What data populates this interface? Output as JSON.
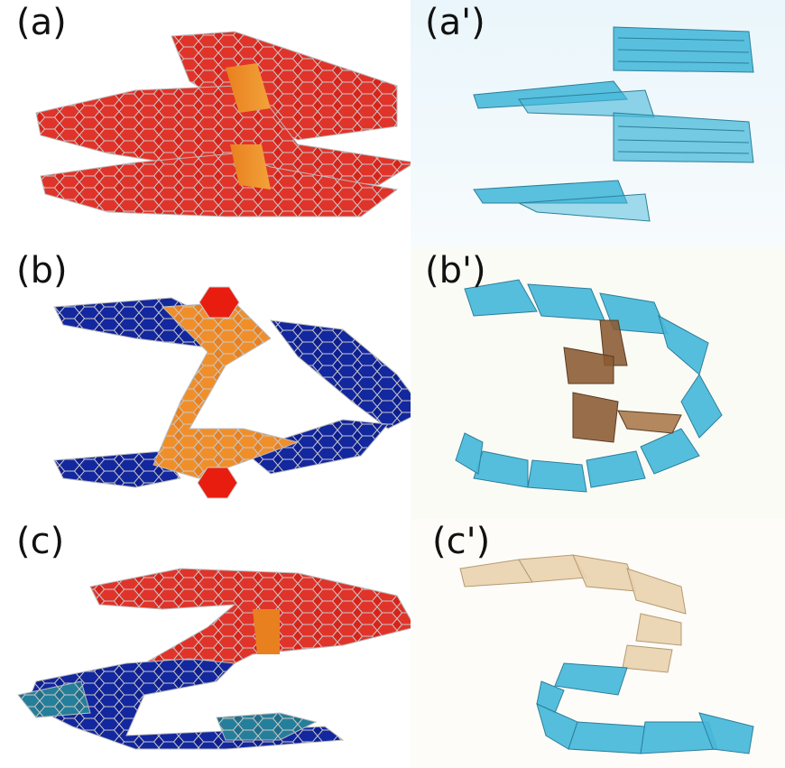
{
  "panels": {
    "a": {
      "label": "(a)",
      "kind": "molecular-helix",
      "colors": [
        "#d8231a",
        "#e8801f"
      ]
    },
    "a2": {
      "label": "(a')",
      "kind": "block-helix",
      "colors": [
        "#3fb4d6",
        "#8fd3e8"
      ]
    },
    "b": {
      "label": "(b)",
      "kind": "molecular-helix",
      "colors": [
        "#0e1f8f",
        "#e8801f",
        "#e81d10"
      ]
    },
    "b2": {
      "label": "(b')",
      "kind": "block-helix",
      "colors": [
        "#3fb4d6",
        "#8a5a32"
      ]
    },
    "c": {
      "label": "(c)",
      "kind": "molecular-helix",
      "colors": [
        "#d8231a",
        "#0e1f8f",
        "#1f6f8a"
      ]
    },
    "c2": {
      "label": "(c')",
      "kind": "block-helix",
      "colors": [
        "#e9d2b0",
        "#3fb4d6"
      ]
    }
  }
}
